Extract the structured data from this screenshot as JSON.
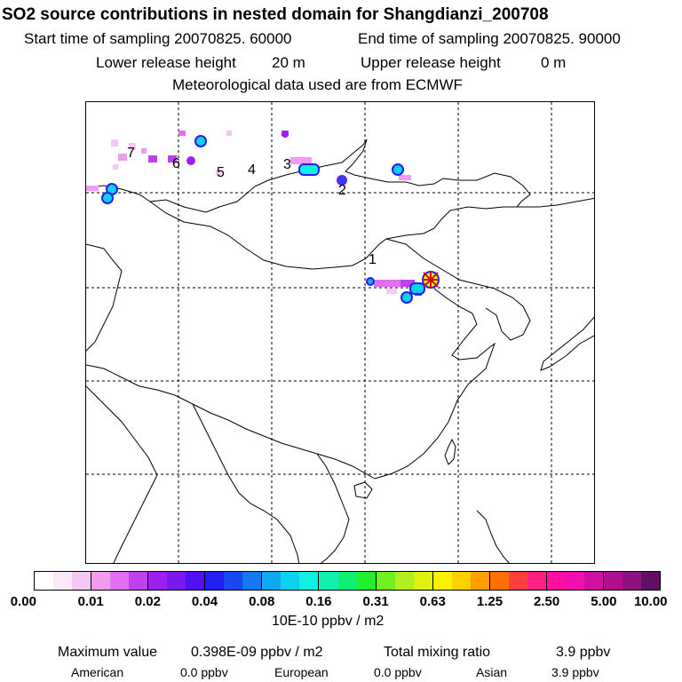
{
  "header": {
    "title": "SO2 source contributions in nested domain for Shangdianzi_200708",
    "start_label": "Start time of sampling 20070825. 60000",
    "end_label": "End time of sampling 20070825. 90000",
    "lower_label": "Lower release height",
    "lower_value": "20 m",
    "upper_label": "Upper release height",
    "upper_value": "0 m",
    "met_label": "Meteorological data used are from ECMWF"
  },
  "map": {
    "region_labels": [
      "1",
      "2",
      "3",
      "4",
      "5",
      "6",
      "7"
    ]
  },
  "colorbar": {
    "colors": [
      "#ffffff",
      "#fde8fb",
      "#f6c7f5",
      "#ef9cf0",
      "#e070f0",
      "#c040f0",
      "#9e20f0",
      "#7a18f0",
      "#5010f0",
      "#2020f0",
      "#1848f0",
      "#1478f0",
      "#10a8f0",
      "#10d0f0",
      "#10f0e0",
      "#10f0b0",
      "#10f070",
      "#20f030",
      "#70f020",
      "#b0f020",
      "#e0f010",
      "#fff000",
      "#ffd000",
      "#ffa000",
      "#ff7000",
      "#ff4040",
      "#ff2080",
      "#ff10a0",
      "#f010b0",
      "#d010a0",
      "#b01090",
      "#901080",
      "#601060"
    ],
    "tick_labels": [
      "0.00",
      "0.01",
      "0.02",
      "0.04",
      "0.08",
      "0.16",
      "0.31",
      "0.63",
      "1.25",
      "2.50",
      "5.00",
      "10.00"
    ],
    "unit_label": "10E-10 ppbv / m2"
  },
  "stats": {
    "max_label": "Maximum value",
    "max_value": "0.398E-09 ppbv / m2",
    "total_label": "Total mixing ratio",
    "total_value": "3.9 ppbv",
    "american_label": "American",
    "american_value": "0.0 ppbv",
    "european_label": "European",
    "european_value": "0.0 ppbv",
    "asian_label": "Asian",
    "asian_value": "3.9 ppbv"
  }
}
